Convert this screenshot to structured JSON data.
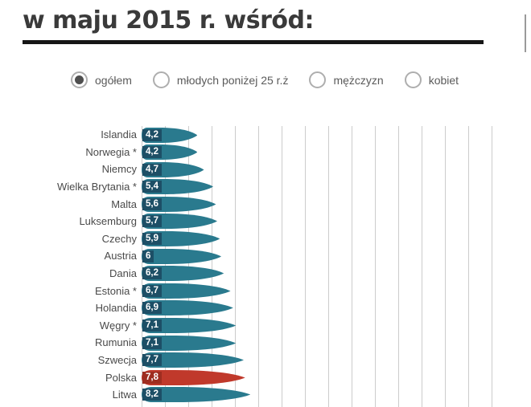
{
  "title": "w maju 2015 r. wśród:",
  "filters": [
    {
      "label": "ogółem",
      "selected": true
    },
    {
      "label": "młodych poniżej 25 r.ż",
      "selected": false
    },
    {
      "label": "mężczyzn",
      "selected": false
    },
    {
      "label": "kobiet",
      "selected": false
    }
  ],
  "chart_data": {
    "type": "bar",
    "orientation": "horizontal",
    "categories": [
      "Islandia",
      "Norwegia *",
      "Niemcy",
      "Wielka Brytania *",
      "Malta",
      "Luksemburg",
      "Czechy",
      "Austria",
      "Dania",
      "Estonia *",
      "Holandia",
      "Węgry *",
      "Rumunia",
      "Szwecja",
      "Polska",
      "Litwa"
    ],
    "values": [
      4.2,
      4.2,
      4.7,
      5.4,
      5.6,
      5.7,
      5.9,
      6,
      6.2,
      6.7,
      6.9,
      7.1,
      7.1,
      7.7,
      7.8,
      8.2
    ],
    "value_labels": [
      "4,2",
      "4,2",
      "4,7",
      "5,4",
      "5,6",
      "5,7",
      "5,9",
      "6",
      "6,2",
      "6,7",
      "6,9",
      "7,1",
      "7,1",
      "7,7",
      "7,8",
      "8,2"
    ],
    "highlighted_category": "Polska",
    "colors": {
      "bar": "#2a7a8e",
      "bar_highlight": "#c0392b",
      "chip": "#1d4f66",
      "chip_highlight": "#9e2d20",
      "grid": "#cccccc"
    },
    "xlim": [
      0,
      8.5
    ],
    "grid": true,
    "legend_position": "none"
  }
}
